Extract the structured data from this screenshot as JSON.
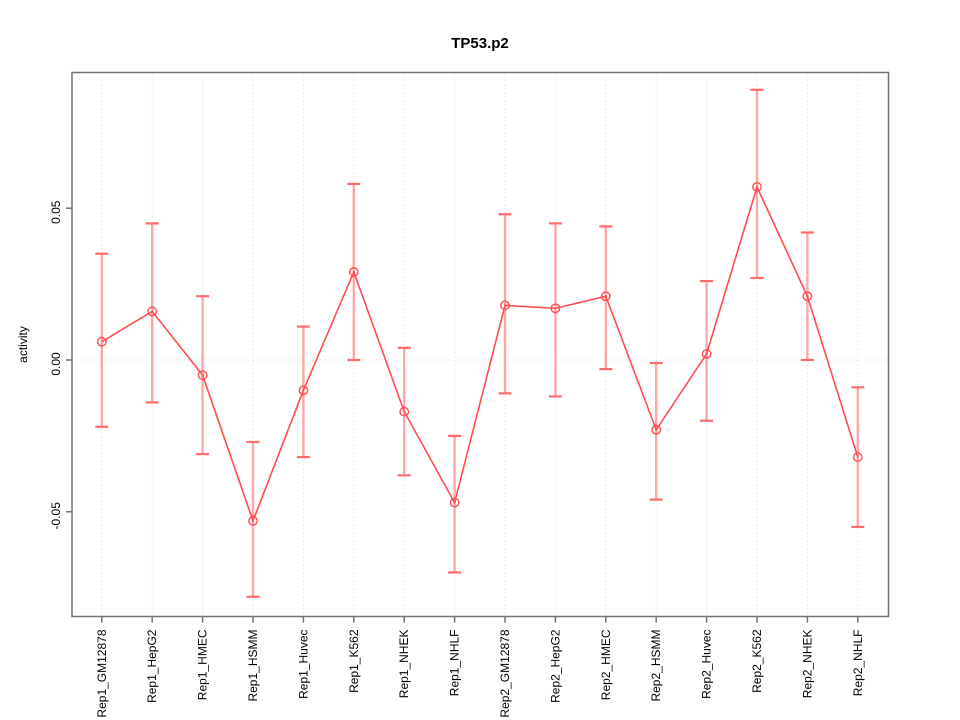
{
  "chart_data": {
    "type": "line",
    "title": "TP53.p2",
    "xlabel": "",
    "ylabel": "activity",
    "categories": [
      "Rep1_GM12878",
      "Rep1_HepG2",
      "Rep1_HMEC",
      "Rep1_HSMM",
      "Rep1_Huvec",
      "Rep1_K562",
      "Rep1_NHEK",
      "Rep1_NHLF",
      "Rep2_GM12878",
      "Rep2_HepG2",
      "Rep2_HMEC",
      "Rep2_HSMM",
      "Rep2_Huvec",
      "Rep2_K562",
      "Rep2_NHEK",
      "Rep2_NHLF"
    ],
    "series": [
      {
        "name": "activity",
        "values": [
          0.006,
          0.016,
          -0.005,
          -0.053,
          -0.01,
          0.029,
          -0.017,
          -0.047,
          0.018,
          0.017,
          0.021,
          -0.023,
          0.002,
          0.057,
          0.021,
          -0.032
        ],
        "error_low": [
          -0.022,
          -0.014,
          -0.031,
          -0.078,
          -0.032,
          0.0,
          -0.038,
          -0.07,
          -0.011,
          -0.012,
          -0.003,
          -0.046,
          -0.02,
          0.027,
          0.0,
          -0.055
        ],
        "error_high": [
          0.035,
          0.045,
          0.021,
          -0.027,
          0.011,
          0.058,
          0.004,
          -0.025,
          0.048,
          0.045,
          0.044,
          -0.001,
          0.026,
          0.089,
          0.042,
          -0.009
        ]
      }
    ],
    "yticks": [
      {
        "value": -0.05,
        "label": "-0.05"
      },
      {
        "value": 0.0,
        "label": "0.00"
      },
      {
        "value": 0.05,
        "label": "0.05"
      }
    ],
    "ylim": [
      -0.0845,
      0.0947
    ],
    "grid": {
      "vertical": "at-each-category",
      "horizontal": "at-zero-only"
    },
    "legend": "none",
    "marker": "open-circle",
    "colors": {
      "line": "#ff4d4d",
      "point_stroke": "#ff4d4d",
      "errorbar_line": "#ffa6a6",
      "errorbar_cap": "#ff6b6b",
      "gridline": "#d4d4d4",
      "box": "#737373",
      "tick": "#737373",
      "text": "#000000",
      "background": "#ffffff"
    }
  }
}
